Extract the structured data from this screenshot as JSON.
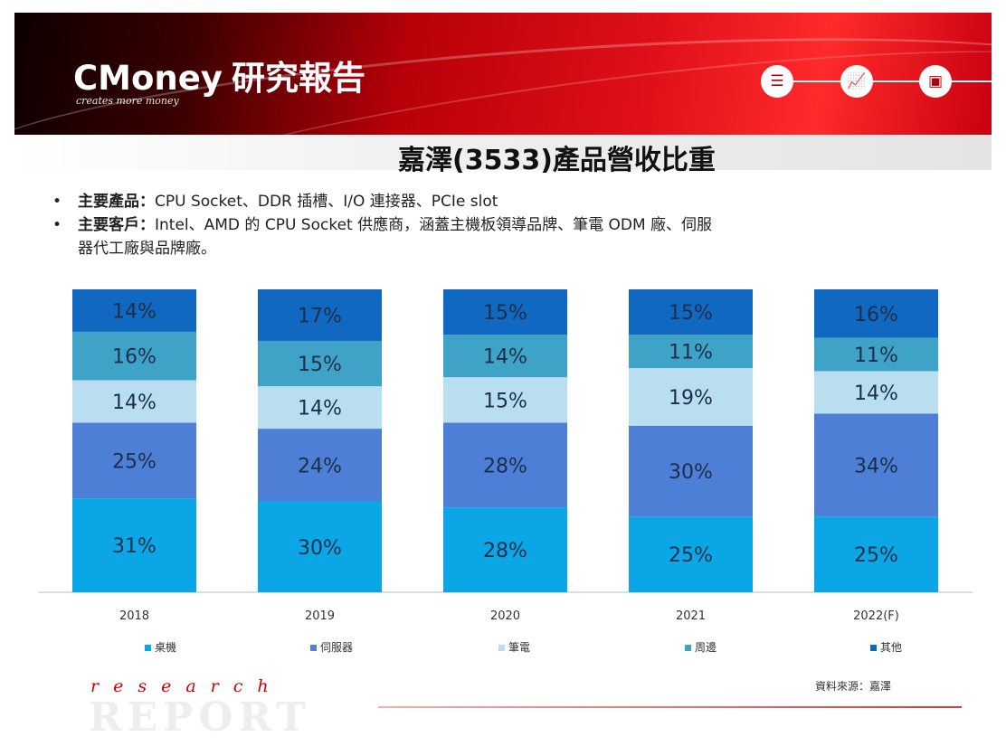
{
  "header": {
    "brand": "CMoney",
    "brand_cn": "研究報告",
    "tagline": "creates more money",
    "nav_icons": [
      "list-icon",
      "chart-icon",
      "image-icon"
    ]
  },
  "title": "嘉澤(3533)產品營收比重",
  "bullets": [
    {
      "label": "主要產品：",
      "text": "CPU Socket、DDR 插槽、I/O 連接器、PCIe slot"
    },
    {
      "label": "主要客戶：",
      "text": "Intel、AMD 的 CPU Socket 供應商，涵蓋主機板領導品牌、筆電 ODM 廠、伺服",
      "cont": "器代工廠與品牌廠。"
    }
  ],
  "chart_data": {
    "type": "bar",
    "stacked": true,
    "categories": [
      "2018",
      "2019",
      "2020",
      "2021",
      "2022(F)"
    ],
    "series": [
      {
        "name": "桌機",
        "color": "#0aa6e6",
        "values": [
          31,
          30,
          28,
          25,
          25
        ]
      },
      {
        "name": "伺服器",
        "color": "#4d7fd6",
        "values": [
          25,
          24,
          28,
          30,
          34
        ]
      },
      {
        "name": "筆電",
        "color": "#b9def0",
        "values": [
          14,
          14,
          15,
          19,
          14
        ]
      },
      {
        "name": "周邊",
        "color": "#3fa3c8",
        "values": [
          16,
          15,
          14,
          11,
          11
        ]
      },
      {
        "name": "其他",
        "color": "#1068c0",
        "values": [
          14,
          17,
          15,
          15,
          16
        ]
      }
    ],
    "value_suffix": "%",
    "legend_position": "bottom",
    "grid": false
  },
  "footer": {
    "research": "research",
    "report": "REPORT",
    "source": "資料來源：嘉澤"
  }
}
